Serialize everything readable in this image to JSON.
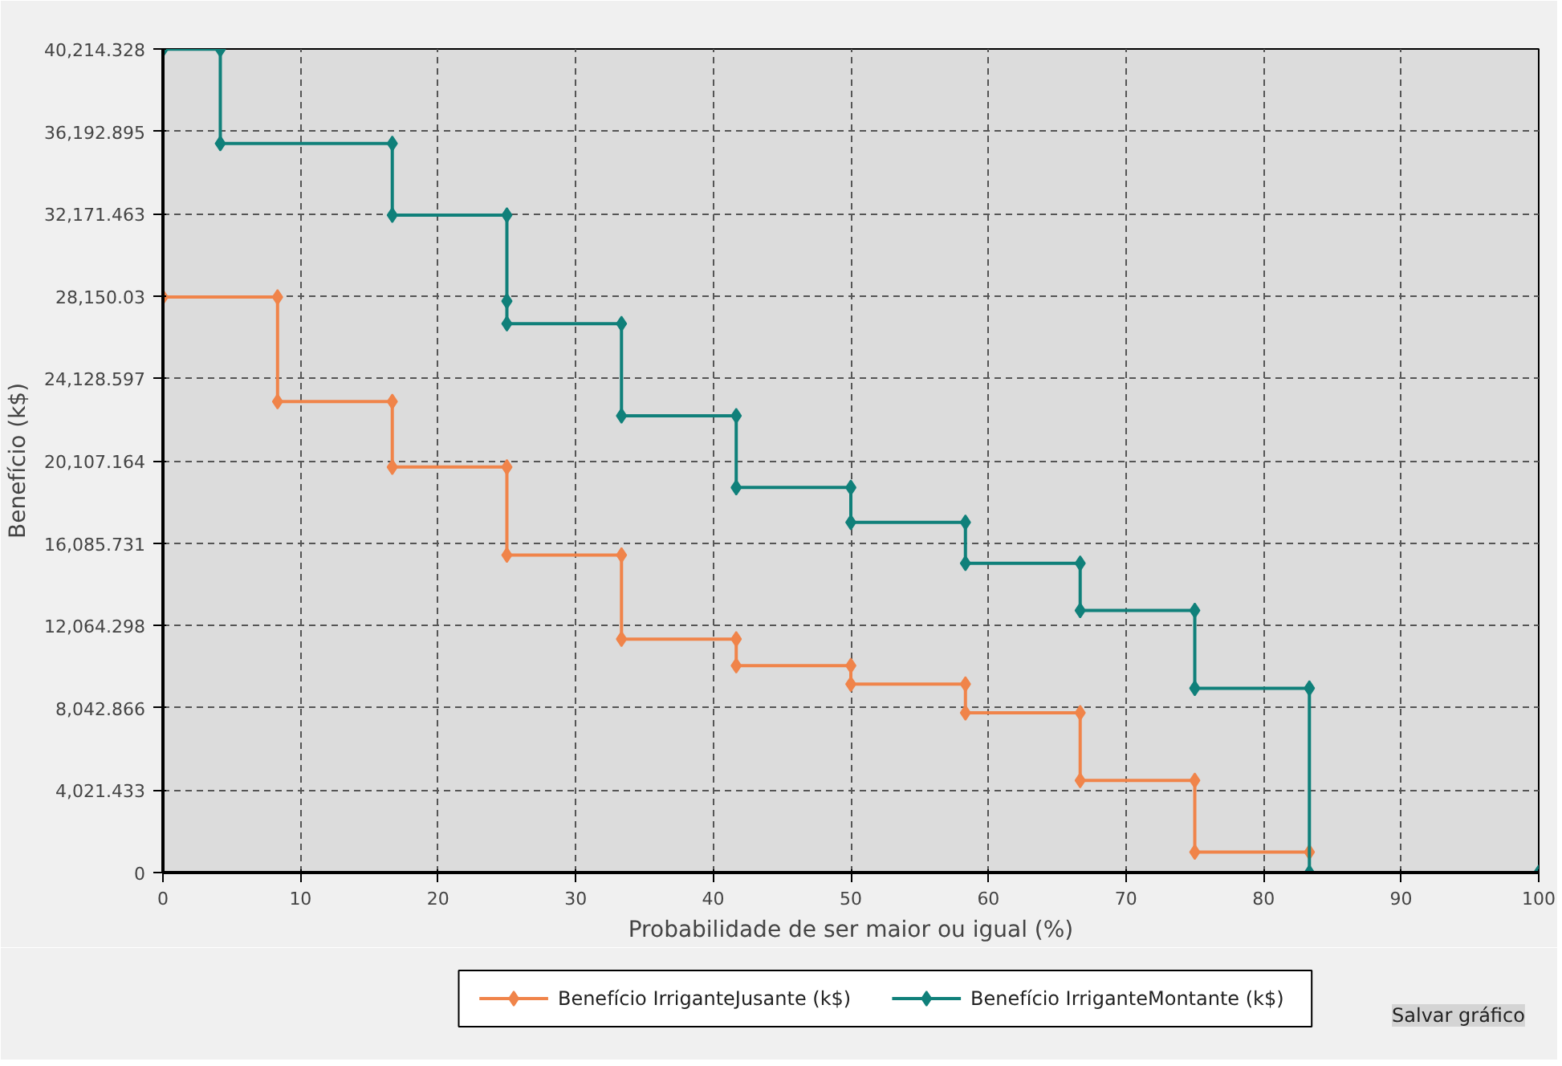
{
  "chart_data": {
    "type": "line",
    "xlabel": "Probabilidade de ser maior ou igual (%)",
    "ylabel": "Benefício (k$)",
    "xlim": [
      0,
      100
    ],
    "xticks": [
      0,
      10,
      20,
      30,
      40,
      50,
      60,
      70,
      80,
      90,
      100
    ],
    "ylim": [
      0,
      40214.328
    ],
    "yticks": [
      {
        "value": 0,
        "label": "0"
      },
      {
        "value": 4021.433,
        "label": "4,021.433"
      },
      {
        "value": 8042.866,
        "label": "8,042.866"
      },
      {
        "value": 12064.298,
        "label": "12,064.298"
      },
      {
        "value": 16085.731,
        "label": "16,085.731"
      },
      {
        "value": 20107.164,
        "label": "20,107.164"
      },
      {
        "value": 24128.597,
        "label": "24,128.597"
      },
      {
        "value": 28150.03,
        "label": "28,150.03"
      },
      {
        "value": 32171.463,
        "label": "32,171.463"
      },
      {
        "value": 36192.895,
        "label": "36,192.895"
      },
      {
        "value": 40214.328,
        "label": "40,214.328"
      }
    ],
    "grid": true,
    "legend": "bottom",
    "marker": "diamond",
    "line_style": "solid",
    "annotations": [
      "Salvar gráfico"
    ],
    "series": [
      {
        "name": "Benefício IrriganteJusante (k$)",
        "color": "#f0844a",
        "x": [
          0,
          8.33,
          8.33,
          16.67,
          16.67,
          25,
          25,
          33.33,
          33.33,
          41.67,
          41.67,
          50,
          50,
          58.33,
          58.33,
          66.67,
          66.67,
          75,
          75,
          83.33
        ],
        "values": [
          28100,
          28100,
          23000,
          23000,
          19800,
          19800,
          15500,
          15500,
          11400,
          11400,
          10100,
          10100,
          9200,
          9200,
          7800,
          7800,
          4500,
          4500,
          1000,
          1000
        ]
      },
      {
        "name": "Benefício IrriganteMontante (k$)",
        "color": "#10807a",
        "x": [
          0,
          4.17,
          4.17,
          16.67,
          16.67,
          25,
          25,
          25,
          33.33,
          33.33,
          41.67,
          41.67,
          50,
          50,
          58.33,
          58.33,
          66.67,
          66.67,
          75,
          75,
          83.33,
          83.33,
          100
        ],
        "values": [
          40200,
          40200,
          35600,
          35600,
          32100,
          32100,
          27900,
          26800,
          26800,
          22300,
          22300,
          18800,
          18800,
          17100,
          17100,
          15100,
          15100,
          12800,
          12800,
          9000,
          9000,
          0,
          0
        ]
      }
    ]
  }
}
